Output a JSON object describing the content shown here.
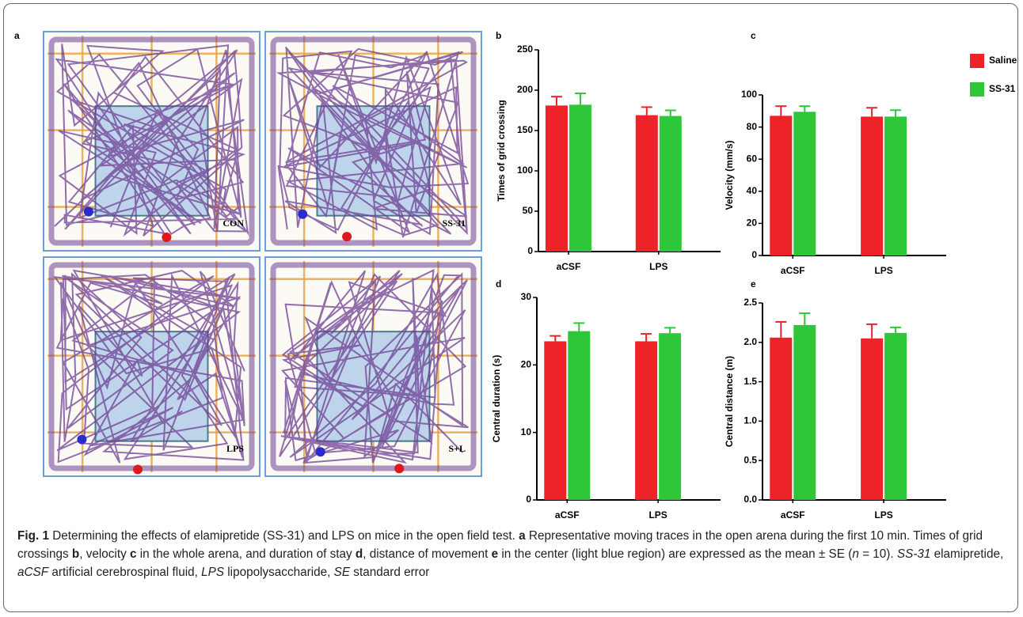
{
  "panel_a": {
    "label": "a",
    "arenas": [
      "CON",
      "SS-31",
      "LPS",
      "S+L"
    ]
  },
  "chart_data": [
    {
      "type": "bar",
      "panel": "b",
      "y_label": "Times of  grid crossing",
      "categories": [
        "aCSF",
        "LPS"
      ],
      "series": [
        {
          "color": "#ee2229",
          "values": [
            181,
            169
          ],
          "errors": [
            11,
            10
          ]
        },
        {
          "color": "#2ec73a",
          "values": [
            182,
            168
          ],
          "errors": [
            14,
            7
          ]
        }
      ],
      "ylim": [
        0,
        250
      ],
      "yticks": [
        0,
        50,
        100,
        150,
        200,
        250
      ]
    },
    {
      "type": "bar",
      "panel": "c",
      "y_label": "Velocity (mm/s)",
      "categories": [
        "aCSF",
        "LPS"
      ],
      "legend": "upper right",
      "series": [
        {
          "name": "Saline",
          "color": "#ee2229",
          "values": [
            87,
            86.5
          ],
          "errors": [
            6,
            5.5
          ]
        },
        {
          "name": "SS-31",
          "color": "#2ec73a",
          "values": [
            89.5,
            86.5
          ],
          "errors": [
            3.5,
            4
          ]
        }
      ],
      "ylim": [
        0,
        100
      ],
      "yticks": [
        0,
        20,
        40,
        60,
        80,
        100
      ]
    },
    {
      "type": "bar",
      "panel": "d",
      "y_label": "Central duration (s)",
      "categories": [
        "aCSF",
        "LPS"
      ],
      "series": [
        {
          "color": "#ee2229",
          "values": [
            23.5,
            23.5
          ],
          "errors": [
            0.8,
            1.1
          ]
        },
        {
          "color": "#2ec73a",
          "values": [
            25,
            24.7
          ],
          "errors": [
            1.2,
            0.8
          ]
        }
      ],
      "ylim": [
        0,
        30
      ],
      "yticks": [
        0,
        10,
        20,
        30
      ]
    },
    {
      "type": "bar",
      "panel": "e",
      "y_label": "Central distance (m)",
      "categories": [
        "aCSF",
        "LPS"
      ],
      "series": [
        {
          "color": "#ee2229",
          "values": [
            2.06,
            2.05
          ],
          "errors": [
            0.2,
            0.18
          ]
        },
        {
          "color": "#2ec73a",
          "values": [
            2.22,
            2.12
          ],
          "errors": [
            0.15,
            0.07
          ]
        }
      ],
      "ylim": [
        0,
        2.5
      ],
      "yticks": [
        {
          "value": 0,
          "label": "0.0"
        },
        0.5,
        {
          "value": 1,
          "label": "1.0"
        },
        1.5,
        {
          "value": 2,
          "label": "2.0"
        },
        2.5
      ]
    }
  ],
  "caption": [
    {
      "text": "Fig. 1",
      "style": "bold"
    },
    {
      "text": " Determining the effects of elamipretide (SS-31) and LPS on mice in the open field test. "
    },
    {
      "text": "a",
      "style": "bold"
    },
    {
      "text": " Representative moving traces in the open arena during the first 10 min. Times of grid crossings "
    },
    {
      "text": "b",
      "style": "bold"
    },
    {
      "text": ", velocity "
    },
    {
      "text": "c",
      "style": "bold"
    },
    {
      "text": " in the whole arena, and duration of stay "
    },
    {
      "text": "d",
      "style": "bold"
    },
    {
      "text": ", distance of movement "
    },
    {
      "text": "e",
      "style": "bold"
    },
    {
      "text": " in the center (light blue region) are expressed as the mean ± SE ("
    },
    {
      "text": "n",
      "style": "italic"
    },
    {
      "text": " = 10). "
    },
    {
      "text": "SS-31",
      "style": "italic"
    },
    {
      "text": " elamipretide, "
    },
    {
      "text": "aCSF",
      "style": "italic"
    },
    {
      "text": " artificial cerebrospinal fluid, "
    },
    {
      "text": "LPS",
      "style": "italic"
    },
    {
      "text": " lipopolysaccharide, "
    },
    {
      "text": "SE",
      "style": "italic"
    },
    {
      "text": " standard error"
    }
  ]
}
